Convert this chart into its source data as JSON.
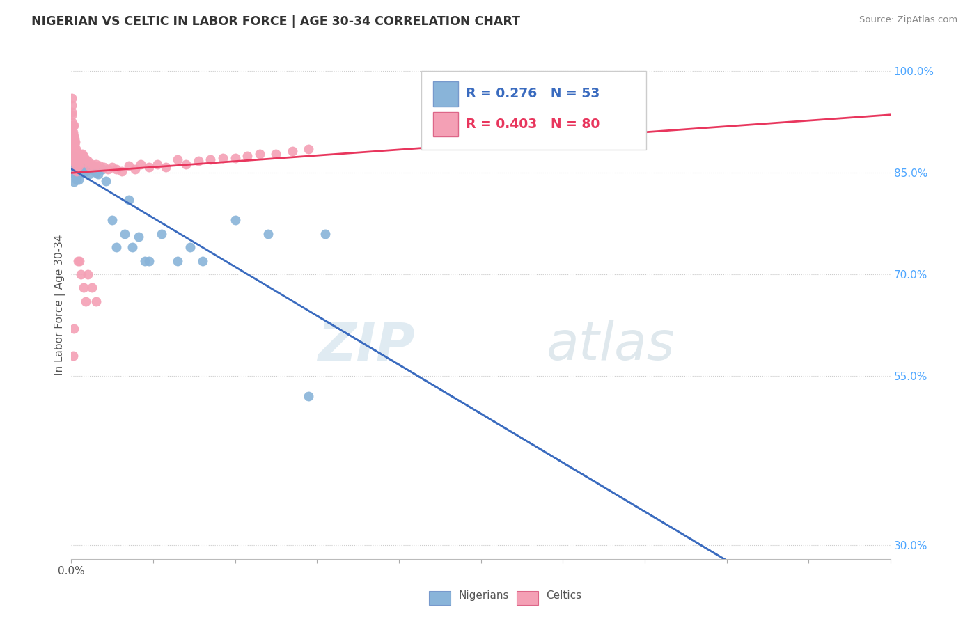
{
  "title": "NIGERIAN VS CELTIC IN LABOR FORCE | AGE 30-34 CORRELATION CHART",
  "source": "Source: ZipAtlas.com",
  "ylabel": "In Labor Force | Age 30-34",
  "xlim": [
    0.0,
    1.0
  ],
  "ylim": [
    0.28,
    1.03
  ],
  "ytick_pos": [
    0.3,
    0.55,
    0.7,
    0.85,
    1.0
  ],
  "ytick_labels": [
    "30.0%",
    "55.0%",
    "70.0%",
    "85.0%",
    "100.0%"
  ],
  "xtick_pos": [
    0.0,
    0.1,
    0.2,
    0.3,
    0.4,
    0.5,
    0.6,
    0.7,
    0.8,
    0.9,
    1.0
  ],
  "nigerian_R": 0.276,
  "nigerian_N": 53,
  "celtic_R": 0.403,
  "celtic_N": 80,
  "nigerian_color": "#89b4d9",
  "celtic_color": "#f4a0b5",
  "nigerian_trend_color": "#3a6bbf",
  "celtic_trend_color": "#e8365d",
  "watermark_zip": "ZIP",
  "watermark_atlas": "atlas",
  "nigerian_x": [
    0.001,
    0.001,
    0.001,
    0.001,
    0.002,
    0.002,
    0.003,
    0.003,
    0.003,
    0.003,
    0.004,
    0.004,
    0.005,
    0.005,
    0.006,
    0.006,
    0.007,
    0.007,
    0.008,
    0.008,
    0.009,
    0.01,
    0.011,
    0.012,
    0.013,
    0.014,
    0.015,
    0.017,
    0.018,
    0.02,
    0.022,
    0.025,
    0.027,
    0.03,
    0.033,
    0.038,
    0.042,
    0.05,
    0.055,
    0.065,
    0.07,
    0.075,
    0.082,
    0.09,
    0.095,
    0.11,
    0.13,
    0.145,
    0.16,
    0.2,
    0.24,
    0.29,
    0.31
  ],
  "nigerian_y": [
    0.87,
    0.865,
    0.86,
    0.85,
    0.875,
    0.855,
    0.87,
    0.858,
    0.848,
    0.837,
    0.865,
    0.852,
    0.872,
    0.858,
    0.865,
    0.845,
    0.86,
    0.84,
    0.865,
    0.852,
    0.84,
    0.86,
    0.858,
    0.865,
    0.858,
    0.85,
    0.86,
    0.865,
    0.852,
    0.862,
    0.848,
    0.855,
    0.858,
    0.85,
    0.848,
    0.855,
    0.838,
    0.78,
    0.74,
    0.76,
    0.81,
    0.74,
    0.755,
    0.72,
    0.72,
    0.76,
    0.72,
    0.74,
    0.72,
    0.78,
    0.76,
    0.52,
    0.76
  ],
  "celtic_x": [
    0.001,
    0.001,
    0.001,
    0.001,
    0.001,
    0.001,
    0.001,
    0.002,
    0.002,
    0.002,
    0.002,
    0.002,
    0.002,
    0.003,
    0.003,
    0.003,
    0.003,
    0.003,
    0.004,
    0.004,
    0.004,
    0.004,
    0.005,
    0.005,
    0.005,
    0.006,
    0.006,
    0.006,
    0.007,
    0.007,
    0.007,
    0.008,
    0.008,
    0.009,
    0.009,
    0.01,
    0.011,
    0.012,
    0.013,
    0.015,
    0.016,
    0.018,
    0.02,
    0.022,
    0.025,
    0.028,
    0.03,
    0.035,
    0.04,
    0.045,
    0.05,
    0.055,
    0.062,
    0.07,
    0.078,
    0.085,
    0.095,
    0.105,
    0.115,
    0.13,
    0.14,
    0.155,
    0.17,
    0.185,
    0.2,
    0.215,
    0.23,
    0.25,
    0.27,
    0.29,
    0.01,
    0.012,
    0.015,
    0.018,
    0.02,
    0.025,
    0.03,
    0.008,
    0.003,
    0.002
  ],
  "celtic_y": [
    0.96,
    0.95,
    0.94,
    0.935,
    0.925,
    0.915,
    0.905,
    0.92,
    0.91,
    0.9,
    0.89,
    0.88,
    0.87,
    0.92,
    0.905,
    0.895,
    0.885,
    0.87,
    0.9,
    0.89,
    0.878,
    0.865,
    0.895,
    0.882,
    0.868,
    0.885,
    0.872,
    0.858,
    0.88,
    0.867,
    0.852,
    0.875,
    0.862,
    0.873,
    0.86,
    0.875,
    0.872,
    0.877,
    0.878,
    0.875,
    0.865,
    0.87,
    0.868,
    0.86,
    0.862,
    0.858,
    0.862,
    0.86,
    0.858,
    0.855,
    0.858,
    0.855,
    0.852,
    0.86,
    0.855,
    0.862,
    0.858,
    0.862,
    0.858,
    0.87,
    0.862,
    0.868,
    0.87,
    0.872,
    0.872,
    0.875,
    0.878,
    0.878,
    0.882,
    0.885,
    0.72,
    0.7,
    0.68,
    0.66,
    0.7,
    0.68,
    0.66,
    0.72,
    0.62,
    0.58
  ]
}
